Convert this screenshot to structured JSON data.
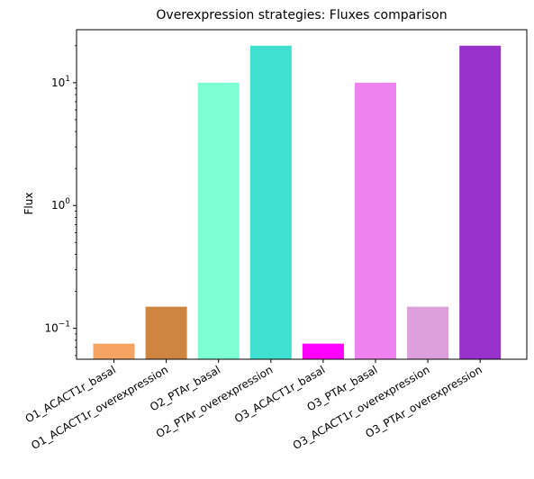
{
  "chart_data": {
    "type": "bar",
    "title": "Overexpression strategies: Fluxes comparison",
    "xlabel": "",
    "ylabel": "Flux",
    "yscale": "log",
    "ylim": [
      0.056,
      27
    ],
    "yticks": [
      {
        "value": 0.1,
        "base": "10",
        "exp": "−1"
      },
      {
        "value": 1,
        "base": "10",
        "exp": "0"
      },
      {
        "value": 10,
        "base": "10",
        "exp": "1"
      }
    ],
    "categories": [
      "O1_ACACT1r_basal",
      "O1_ACACT1r_overexpression",
      "O2_PTAr_basal",
      "O2_PTAr_overexpression",
      "O3_ACACT1r_basal",
      "O3_PTAr_basal",
      "O3_ACACT1r_overexpression",
      "O3_PTAr_overexpression"
    ],
    "values": [
      0.075,
      0.15,
      10,
      20,
      0.075,
      10,
      0.15,
      20
    ],
    "colors": [
      "#f4a460",
      "#cd853f",
      "#7fffd4",
      "#40e0d0",
      "#ff00ff",
      "#ee82ee",
      "#dda0dd",
      "#9932cc"
    ],
    "grid": false,
    "legend": "none"
  }
}
